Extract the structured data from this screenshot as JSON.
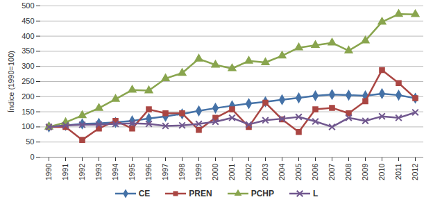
{
  "chart_data": {
    "type": "line",
    "y_label": "Índice (1990=100)",
    "categories": [
      "1990",
      "1991",
      "1992",
      "1993",
      "1994",
      "1995",
      "1996",
      "1997",
      "1998",
      "1999",
      "2000",
      "2001",
      "2002",
      "2003",
      "2004",
      "2005",
      "2006",
      "2007",
      "2008",
      "2009",
      "2010",
      "2011",
      "2012"
    ],
    "series": [
      {
        "name": "CE",
        "color": "#4572A7",
        "marker": "diamond",
        "values": [
          100,
          105,
          110,
          112,
          115,
          120,
          128,
          135,
          143,
          153,
          162,
          170,
          177,
          183,
          190,
          196,
          203,
          207,
          205,
          203,
          210,
          205,
          195
        ]
      },
      {
        "name": "PREN",
        "color": "#AA4643",
        "marker": "square",
        "values": [
          100,
          100,
          57,
          95,
          120,
          95,
          158,
          145,
          145,
          90,
          130,
          158,
          100,
          180,
          125,
          83,
          158,
          163,
          145,
          185,
          288,
          245,
          195
        ]
      },
      {
        "name": "PCHP",
        "color": "#89A54E",
        "marker": "triangle",
        "values": [
          100,
          115,
          138,
          162,
          192,
          222,
          220,
          260,
          278,
          325,
          305,
          293,
          318,
          313,
          335,
          362,
          370,
          378,
          352,
          385,
          447,
          473,
          472
        ]
      },
      {
        "name": "L",
        "color": "#71588F",
        "marker": "times",
        "values": [
          100,
          105,
          107,
          108,
          110,
          112,
          110,
          103,
          105,
          110,
          117,
          130,
          108,
          122,
          127,
          133,
          118,
          100,
          130,
          120,
          135,
          130,
          148
        ]
      }
    ],
    "ylim": [
      0,
      500
    ],
    "yticks": [
      0,
      50,
      100,
      150,
      200,
      250,
      300,
      350,
      400,
      450,
      500
    ],
    "grid": true,
    "legend": "bottom"
  }
}
